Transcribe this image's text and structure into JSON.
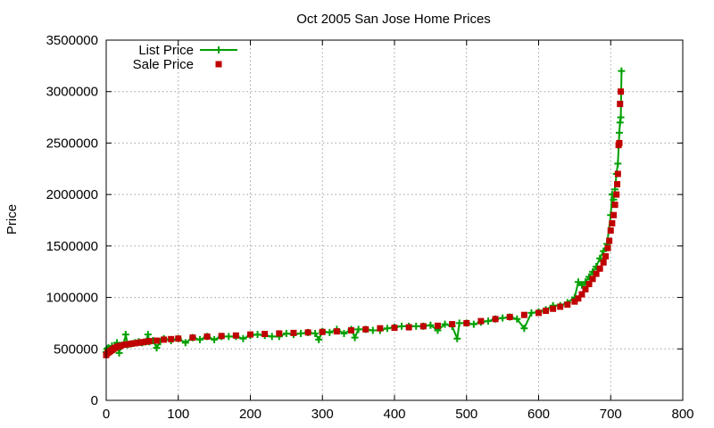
{
  "chart_data": {
    "type": "line",
    "title": "Oct 2005 San Jose Home Prices",
    "xlabel": "",
    "ylabel": "Price",
    "xlim": [
      0,
      800
    ],
    "ylim": [
      0,
      3500000
    ],
    "xticks": [
      0,
      100,
      200,
      300,
      400,
      500,
      600,
      700,
      800
    ],
    "yticks": [
      0,
      500000,
      1000000,
      1500000,
      2000000,
      2500000,
      3000000,
      3500000
    ],
    "xtick_labels": [
      "0",
      "100",
      "200",
      "300",
      "400",
      "500",
      "600",
      "700",
      "800"
    ],
    "ytick_labels": [
      "0",
      "500000",
      "1000000",
      "1500000",
      "2000000",
      "2500000",
      "3000000",
      "3500000"
    ],
    "grid": true,
    "legend_position": "top-left",
    "series": [
      {
        "name": "List Price",
        "style": "line+cross",
        "color": "#00a000",
        "x": [
          0,
          1,
          2,
          3,
          5,
          8,
          10,
          12,
          15,
          18,
          20,
          25,
          27,
          30,
          35,
          40,
          45,
          50,
          55,
          58,
          60,
          65,
          70,
          75,
          80,
          90,
          100,
          110,
          120,
          130,
          140,
          150,
          160,
          170,
          180,
          190,
          200,
          210,
          220,
          230,
          240,
          250,
          260,
          270,
          280,
          290,
          295,
          300,
          310,
          320,
          330,
          340,
          345,
          350,
          360,
          370,
          380,
          390,
          400,
          410,
          420,
          430,
          440,
          450,
          460,
          470,
          480,
          487,
          490,
          500,
          510,
          520,
          530,
          540,
          550,
          560,
          570,
          580,
          590,
          600,
          610,
          620,
          630,
          640,
          650,
          655,
          660,
          665,
          670,
          675,
          680,
          685,
          690,
          695,
          700,
          702,
          704,
          706,
          708,
          710,
          712,
          713,
          714,
          715
        ],
        "y": [
          470000,
          500000,
          460000,
          510000,
          490000,
          530000,
          500000,
          520000,
          560000,
          460000,
          520000,
          560000,
          640000,
          540000,
          550000,
          560000,
          570000,
          560000,
          570000,
          640000,
          570000,
          580000,
          510000,
          570000,
          600000,
          580000,
          600000,
          560000,
          610000,
          590000,
          620000,
          590000,
          620000,
          620000,
          620000,
          600000,
          630000,
          640000,
          630000,
          620000,
          620000,
          650000,
          640000,
          650000,
          660000,
          650000,
          590000,
          670000,
          660000,
          690000,
          650000,
          690000,
          610000,
          690000,
          690000,
          680000,
          680000,
          700000,
          710000,
          720000,
          720000,
          720000,
          720000,
          730000,
          680000,
          740000,
          720000,
          600000,
          750000,
          750000,
          740000,
          760000,
          770000,
          790000,
          800000,
          810000,
          790000,
          700000,
          850000,
          860000,
          880000,
          920000,
          920000,
          950000,
          1000000,
          1150000,
          1120000,
          1150000,
          1200000,
          1250000,
          1300000,
          1380000,
          1450000,
          1520000,
          1800000,
          2000000,
          1950000,
          2050000,
          2200000,
          2300000,
          2600000,
          2700000,
          2750000,
          3200000
        ]
      },
      {
        "name": "Sale Price",
        "style": "square",
        "color": "#c00000",
        "x": [
          0,
          2,
          4,
          6,
          8,
          10,
          12,
          15,
          18,
          20,
          25,
          30,
          35,
          40,
          45,
          50,
          55,
          60,
          70,
          80,
          90,
          100,
          120,
          140,
          160,
          180,
          200,
          220,
          240,
          260,
          280,
          300,
          320,
          340,
          360,
          380,
          400,
          420,
          440,
          460,
          480,
          500,
          520,
          540,
          560,
          580,
          600,
          610,
          620,
          630,
          640,
          650,
          655,
          660,
          665,
          670,
          675,
          680,
          685,
          690,
          693,
          696,
          698,
          700,
          702,
          704,
          706,
          708,
          709,
          710,
          711,
          712,
          713,
          714
        ],
        "y": [
          440000,
          460000,
          470000,
          480000,
          490000,
          500000,
          510000,
          520000,
          525000,
          530000,
          540000,
          545000,
          550000,
          555000,
          560000,
          565000,
          570000,
          575000,
          580000,
          590000,
          595000,
          600000,
          610000,
          620000,
          625000,
          630000,
          640000,
          645000,
          650000,
          655000,
          660000,
          665000,
          670000,
          680000,
          690000,
          700000,
          705000,
          710000,
          720000,
          725000,
          740000,
          750000,
          770000,
          790000,
          810000,
          830000,
          850000,
          870000,
          890000,
          910000,
          930000,
          960000,
          990000,
          1030000,
          1080000,
          1130000,
          1180000,
          1230000,
          1280000,
          1340000,
          1400000,
          1480000,
          1550000,
          1650000,
          1720000,
          1800000,
          1900000,
          2000000,
          2100000,
          2200000,
          2480000,
          2500000,
          2880000,
          3000000
        ]
      }
    ]
  }
}
